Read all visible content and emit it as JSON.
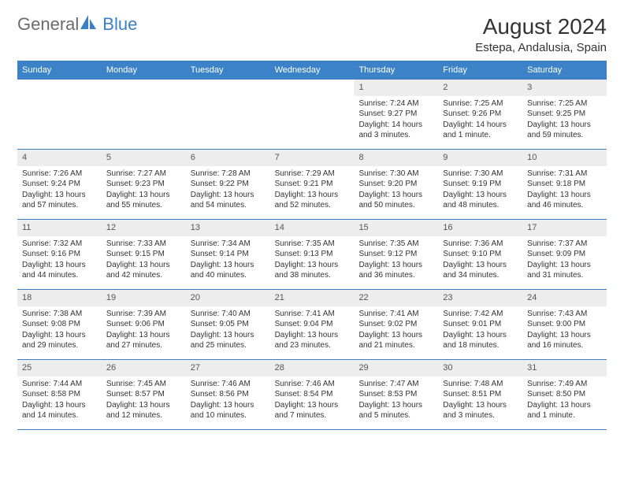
{
  "logo": {
    "part1": "General",
    "part2": "Blue"
  },
  "title": "August 2024",
  "location": "Estepa, Andalusia, Spain",
  "dayNames": [
    "Sunday",
    "Monday",
    "Tuesday",
    "Wednesday",
    "Thursday",
    "Friday",
    "Saturday"
  ],
  "colors": {
    "headerBg": "#3b83c6",
    "headerText": "#ffffff",
    "borderLine": "#3b7fc4",
    "dayNumBg": "#ededed",
    "textColor": "#333333",
    "logoGray": "#6b6b6b",
    "logoBlue": "#3b7fc4"
  },
  "typography": {
    "monthTitleSize": 28,
    "locationSize": 15,
    "dayHeaderSize": 11,
    "cellTextSize": 10
  },
  "weeks": [
    [
      {
        "num": "",
        "sunrise": "",
        "sunset": "",
        "daylight": ""
      },
      {
        "num": "",
        "sunrise": "",
        "sunset": "",
        "daylight": ""
      },
      {
        "num": "",
        "sunrise": "",
        "sunset": "",
        "daylight": ""
      },
      {
        "num": "",
        "sunrise": "",
        "sunset": "",
        "daylight": ""
      },
      {
        "num": "1",
        "sunrise": "Sunrise: 7:24 AM",
        "sunset": "Sunset: 9:27 PM",
        "daylight": "Daylight: 14 hours and 3 minutes."
      },
      {
        "num": "2",
        "sunrise": "Sunrise: 7:25 AM",
        "sunset": "Sunset: 9:26 PM",
        "daylight": "Daylight: 14 hours and 1 minute."
      },
      {
        "num": "3",
        "sunrise": "Sunrise: 7:25 AM",
        "sunset": "Sunset: 9:25 PM",
        "daylight": "Daylight: 13 hours and 59 minutes."
      }
    ],
    [
      {
        "num": "4",
        "sunrise": "Sunrise: 7:26 AM",
        "sunset": "Sunset: 9:24 PM",
        "daylight": "Daylight: 13 hours and 57 minutes."
      },
      {
        "num": "5",
        "sunrise": "Sunrise: 7:27 AM",
        "sunset": "Sunset: 9:23 PM",
        "daylight": "Daylight: 13 hours and 55 minutes."
      },
      {
        "num": "6",
        "sunrise": "Sunrise: 7:28 AM",
        "sunset": "Sunset: 9:22 PM",
        "daylight": "Daylight: 13 hours and 54 minutes."
      },
      {
        "num": "7",
        "sunrise": "Sunrise: 7:29 AM",
        "sunset": "Sunset: 9:21 PM",
        "daylight": "Daylight: 13 hours and 52 minutes."
      },
      {
        "num": "8",
        "sunrise": "Sunrise: 7:30 AM",
        "sunset": "Sunset: 9:20 PM",
        "daylight": "Daylight: 13 hours and 50 minutes."
      },
      {
        "num": "9",
        "sunrise": "Sunrise: 7:30 AM",
        "sunset": "Sunset: 9:19 PM",
        "daylight": "Daylight: 13 hours and 48 minutes."
      },
      {
        "num": "10",
        "sunrise": "Sunrise: 7:31 AM",
        "sunset": "Sunset: 9:18 PM",
        "daylight": "Daylight: 13 hours and 46 minutes."
      }
    ],
    [
      {
        "num": "11",
        "sunrise": "Sunrise: 7:32 AM",
        "sunset": "Sunset: 9:16 PM",
        "daylight": "Daylight: 13 hours and 44 minutes."
      },
      {
        "num": "12",
        "sunrise": "Sunrise: 7:33 AM",
        "sunset": "Sunset: 9:15 PM",
        "daylight": "Daylight: 13 hours and 42 minutes."
      },
      {
        "num": "13",
        "sunrise": "Sunrise: 7:34 AM",
        "sunset": "Sunset: 9:14 PM",
        "daylight": "Daylight: 13 hours and 40 minutes."
      },
      {
        "num": "14",
        "sunrise": "Sunrise: 7:35 AM",
        "sunset": "Sunset: 9:13 PM",
        "daylight": "Daylight: 13 hours and 38 minutes."
      },
      {
        "num": "15",
        "sunrise": "Sunrise: 7:35 AM",
        "sunset": "Sunset: 9:12 PM",
        "daylight": "Daylight: 13 hours and 36 minutes."
      },
      {
        "num": "16",
        "sunrise": "Sunrise: 7:36 AM",
        "sunset": "Sunset: 9:10 PM",
        "daylight": "Daylight: 13 hours and 34 minutes."
      },
      {
        "num": "17",
        "sunrise": "Sunrise: 7:37 AM",
        "sunset": "Sunset: 9:09 PM",
        "daylight": "Daylight: 13 hours and 31 minutes."
      }
    ],
    [
      {
        "num": "18",
        "sunrise": "Sunrise: 7:38 AM",
        "sunset": "Sunset: 9:08 PM",
        "daylight": "Daylight: 13 hours and 29 minutes."
      },
      {
        "num": "19",
        "sunrise": "Sunrise: 7:39 AM",
        "sunset": "Sunset: 9:06 PM",
        "daylight": "Daylight: 13 hours and 27 minutes."
      },
      {
        "num": "20",
        "sunrise": "Sunrise: 7:40 AM",
        "sunset": "Sunset: 9:05 PM",
        "daylight": "Daylight: 13 hours and 25 minutes."
      },
      {
        "num": "21",
        "sunrise": "Sunrise: 7:41 AM",
        "sunset": "Sunset: 9:04 PM",
        "daylight": "Daylight: 13 hours and 23 minutes."
      },
      {
        "num": "22",
        "sunrise": "Sunrise: 7:41 AM",
        "sunset": "Sunset: 9:02 PM",
        "daylight": "Daylight: 13 hours and 21 minutes."
      },
      {
        "num": "23",
        "sunrise": "Sunrise: 7:42 AM",
        "sunset": "Sunset: 9:01 PM",
        "daylight": "Daylight: 13 hours and 18 minutes."
      },
      {
        "num": "24",
        "sunrise": "Sunrise: 7:43 AM",
        "sunset": "Sunset: 9:00 PM",
        "daylight": "Daylight: 13 hours and 16 minutes."
      }
    ],
    [
      {
        "num": "25",
        "sunrise": "Sunrise: 7:44 AM",
        "sunset": "Sunset: 8:58 PM",
        "daylight": "Daylight: 13 hours and 14 minutes."
      },
      {
        "num": "26",
        "sunrise": "Sunrise: 7:45 AM",
        "sunset": "Sunset: 8:57 PM",
        "daylight": "Daylight: 13 hours and 12 minutes."
      },
      {
        "num": "27",
        "sunrise": "Sunrise: 7:46 AM",
        "sunset": "Sunset: 8:56 PM",
        "daylight": "Daylight: 13 hours and 10 minutes."
      },
      {
        "num": "28",
        "sunrise": "Sunrise: 7:46 AM",
        "sunset": "Sunset: 8:54 PM",
        "daylight": "Daylight: 13 hours and 7 minutes."
      },
      {
        "num": "29",
        "sunrise": "Sunrise: 7:47 AM",
        "sunset": "Sunset: 8:53 PM",
        "daylight": "Daylight: 13 hours and 5 minutes."
      },
      {
        "num": "30",
        "sunrise": "Sunrise: 7:48 AM",
        "sunset": "Sunset: 8:51 PM",
        "daylight": "Daylight: 13 hours and 3 minutes."
      },
      {
        "num": "31",
        "sunrise": "Sunrise: 7:49 AM",
        "sunset": "Sunset: 8:50 PM",
        "daylight": "Daylight: 13 hours and 1 minute."
      }
    ]
  ]
}
